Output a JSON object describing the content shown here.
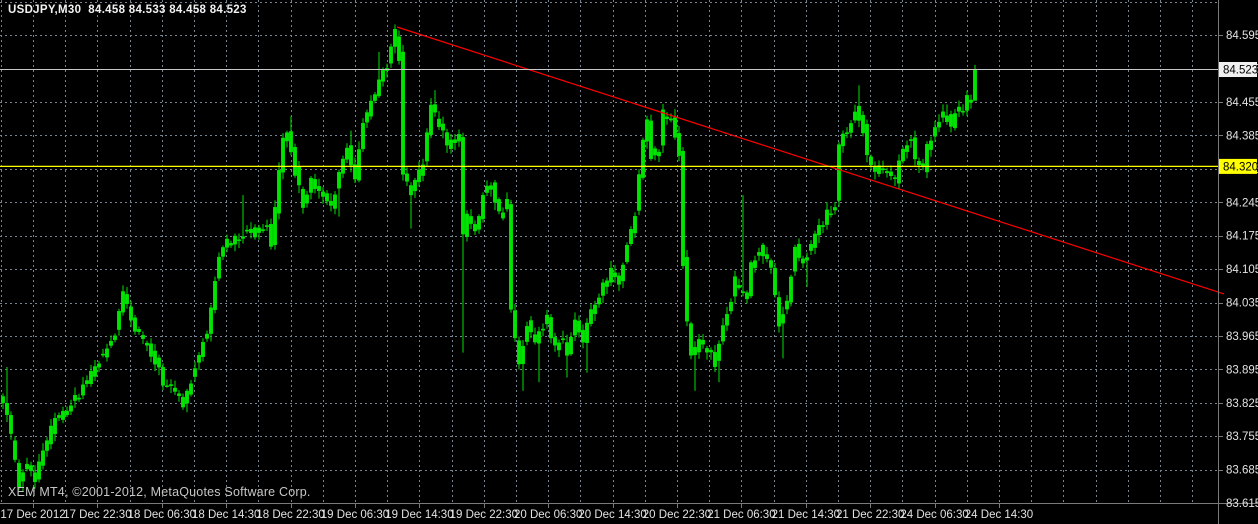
{
  "window": {
    "title_bar": "USDJPY,M30  84.458 84.533 84.458 84.523",
    "watermark": "XEM MT4, ©2001-2012, MetaQuotes Software Corp."
  },
  "colors": {
    "background": "#000000",
    "grid": "#75828f",
    "candle": "#00e400",
    "candle_wick": "#00cc00",
    "trendline": "#ff0000",
    "yellow_line": "#ffff00",
    "current_price_line": "#c8c8c8",
    "axis_line": "#7a7a7a",
    "axis_text": "#e2e2e2",
    "tag_current_bg": "#f0f0f0",
    "tag_yellow_bg": "#ffff00",
    "tag_text": "#000000"
  },
  "chart_data": {
    "type": "candlestick",
    "symbol": "USDJPY",
    "timeframe": "M30",
    "last_bar_ohlc": {
      "open": 84.458,
      "high": 84.533,
      "low": 84.458,
      "close": 84.523
    },
    "bar_count": 244,
    "ylim": [
      83.615,
      84.669
    ],
    "y_ticks": [
      84.595,
      84.525,
      84.455,
      84.385,
      84.315,
      84.245,
      84.175,
      84.105,
      84.035,
      83.965,
      83.895,
      83.825,
      83.755,
      83.685,
      83.615
    ],
    "x_labels": [
      "17 Dec 2012",
      "17 Dec 22:30",
      "18 Dec 06:30",
      "18 Dec 14:30",
      "18 Dec 22:30",
      "19 Dec 06:30",
      "19 Dec 14:30",
      "19 Dec 22:30",
      "20 Dec 06:30",
      "20 Dec 14:30",
      "20 Dec 22:30",
      "21 Dec 06:30",
      "21 Dec 14:30",
      "21 Dec 22:30",
      "24 Dec 06:30",
      "24 Dec 14:30"
    ],
    "grid": {
      "price_step": 0.07,
      "vline_every_bars": 8,
      "label_every_bars": 16
    },
    "current_price_marker": {
      "price": 84.523,
      "label": "84.523"
    },
    "horizontal_line": {
      "price": 84.32,
      "label": "84.320"
    },
    "trendline": {
      "from": {
        "bar": 98.5,
        "price": 84.612
      },
      "to": {
        "bar": 304.5,
        "price": 84.053
      }
    },
    "price_path_waypoints": [
      [
        0,
        83.83
      ],
      [
        1,
        83.82
      ],
      [
        2,
        83.8
      ],
      [
        5,
        83.655
      ],
      [
        7,
        83.7
      ],
      [
        9,
        83.665
      ],
      [
        11,
        83.72
      ],
      [
        14,
        83.79
      ],
      [
        18,
        83.82
      ],
      [
        22,
        83.87
      ],
      [
        25,
        83.915
      ],
      [
        29,
        83.97
      ],
      [
        31,
        84.05
      ],
      [
        34,
        83.975
      ],
      [
        38,
        83.93
      ],
      [
        41,
        83.87
      ],
      [
        44,
        83.85
      ],
      [
        46,
        83.82
      ],
      [
        49,
        83.9
      ],
      [
        52,
        83.975
      ],
      [
        55,
        84.13
      ],
      [
        57,
        84.16
      ],
      [
        60,
        84.17
      ],
      [
        62,
        84.19
      ],
      [
        64,
        84.18
      ],
      [
        67,
        84.2
      ],
      [
        68,
        84.15
      ],
      [
        70,
        84.31
      ],
      [
        71,
        84.37
      ],
      [
        72,
        84.4
      ],
      [
        74,
        84.31
      ],
      [
        76,
        84.24
      ],
      [
        78,
        84.29
      ],
      [
        79,
        84.27
      ],
      [
        81,
        84.26
      ],
      [
        83,
        84.23
      ],
      [
        85,
        84.31
      ],
      [
        87,
        84.36
      ],
      [
        89,
        84.29
      ],
      [
        91,
        84.41
      ],
      [
        94,
        84.47
      ],
      [
        95,
        84.5
      ],
      [
        97,
        84.53
      ],
      [
        99,
        84.6
      ],
      [
        100,
        84.55
      ],
      [
        101,
        84.3
      ],
      [
        103,
        84.26
      ],
      [
        104,
        84.285
      ],
      [
        106,
        84.33
      ],
      [
        108,
        84.45
      ],
      [
        110,
        84.4
      ],
      [
        113,
        84.36
      ],
      [
        115,
        84.38
      ],
      [
        116,
        84.17
      ],
      [
        117,
        84.22
      ],
      [
        119,
        84.18
      ],
      [
        121,
        84.26
      ],
      [
        123,
        84.28
      ],
      [
        125,
        84.22
      ],
      [
        127,
        84.245
      ],
      [
        128,
        84.02
      ],
      [
        130,
        83.9
      ],
      [
        132,
        83.99
      ],
      [
        134,
        83.95
      ],
      [
        137,
        84.0
      ],
      [
        139,
        83.94
      ],
      [
        141,
        83.96
      ],
      [
        142,
        83.93
      ],
      [
        144,
        83.99
      ],
      [
        146,
        83.955
      ],
      [
        148,
        84.02
      ],
      [
        150,
        84.05
      ],
      [
        153,
        84.1
      ],
      [
        155,
        84.08
      ],
      [
        157,
        84.15
      ],
      [
        159,
        84.22
      ],
      [
        160,
        84.3
      ],
      [
        161,
        84.38
      ],
      [
        162,
        84.42
      ],
      [
        163,
        84.34
      ],
      [
        165,
        84.36
      ],
      [
        166,
        84.43
      ],
      [
        168,
        84.42
      ],
      [
        170,
        84.35
      ],
      [
        171,
        84.12
      ],
      [
        172,
        84.0
      ],
      [
        173,
        83.93
      ],
      [
        175,
        83.95
      ],
      [
        177,
        83.94
      ],
      [
        179,
        83.91
      ],
      [
        181,
        83.99
      ],
      [
        183,
        84.04
      ],
      [
        184,
        84.08
      ],
      [
        185,
        84.06
      ],
      [
        187,
        84.05
      ],
      [
        188,
        84.11
      ],
      [
        190,
        84.15
      ],
      [
        192,
        84.12
      ],
      [
        193,
        84.1
      ],
      [
        195,
        83.99
      ],
      [
        197,
        84.04
      ],
      [
        199,
        84.15
      ],
      [
        201,
        84.12
      ],
      [
        203,
        84.15
      ],
      [
        205,
        84.19
      ],
      [
        207,
        84.22
      ],
      [
        209,
        84.24
      ],
      [
        210,
        84.36
      ],
      [
        212,
        84.4
      ],
      [
        214,
        84.44
      ],
      [
        216,
        84.4
      ],
      [
        217,
        84.34
      ],
      [
        219,
        84.3
      ],
      [
        220,
        84.32
      ],
      [
        222,
        84.3
      ],
      [
        224,
        84.29
      ],
      [
        226,
        84.36
      ],
      [
        228,
        84.38
      ],
      [
        229,
        84.33
      ],
      [
        231,
        84.31
      ],
      [
        232,
        84.36
      ],
      [
        234,
        84.4
      ],
      [
        236,
        84.43
      ],
      [
        238,
        84.41
      ],
      [
        239,
        84.43
      ],
      [
        241,
        84.44
      ],
      [
        242,
        84.46
      ],
      [
        243,
        84.458
      ],
      [
        244,
        84.523
      ]
    ],
    "wick_spikes": [
      {
        "bar": 1,
        "high": 83.9
      },
      {
        "bar": 5,
        "low": 83.638
      },
      {
        "bar": 31,
        "high": 84.065
      },
      {
        "bar": 46,
        "low": 83.805
      },
      {
        "bar": 60,
        "high": 84.26
      },
      {
        "bar": 72,
        "high": 84.425
      },
      {
        "bar": 84,
        "low": 84.215
      },
      {
        "bar": 87,
        "high": 84.395
      },
      {
        "bar": 94,
        "high": 84.56
      },
      {
        "bar": 99,
        "high": 84.605
      },
      {
        "bar": 102,
        "low": 84.19
      },
      {
        "bar": 108,
        "high": 84.48
      },
      {
        "bar": 115,
        "low": 83.93
      },
      {
        "bar": 130,
        "low": 83.85
      },
      {
        "bar": 134,
        "low": 83.868
      },
      {
        "bar": 141,
        "low": 83.878
      },
      {
        "bar": 146,
        "low": 83.888
      },
      {
        "bar": 168,
        "high": 84.44
      },
      {
        "bar": 171,
        "low": 84.095
      },
      {
        "bar": 173,
        "low": 83.85
      },
      {
        "bar": 179,
        "low": 83.868
      },
      {
        "bar": 185,
        "high": 84.26
      },
      {
        "bar": 195,
        "low": 83.918
      },
      {
        "bar": 201,
        "low": 84.068
      },
      {
        "bar": 214,
        "high": 84.49
      },
      {
        "bar": 228,
        "high": 84.395
      },
      {
        "bar": 236,
        "high": 84.45
      }
    ]
  }
}
